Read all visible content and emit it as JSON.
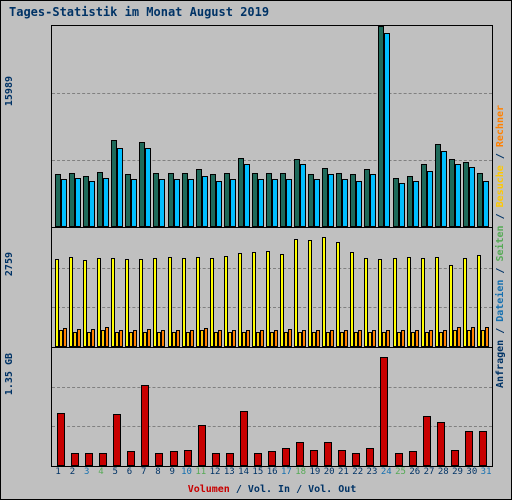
{
  "title": "Tages-Statistik im Monat August 2019",
  "background_color": "#c0c0c0",
  "title_color": "#003366",
  "days": 31,
  "panels": {
    "top": {
      "max": 15989,
      "ylabel_tick": "15989",
      "grid_lines": [
        33,
        66
      ],
      "series": [
        {
          "name": "Anfragen",
          "color": "#1e6a5a",
          "values": [
            4200,
            4300,
            4100,
            4400,
            6900,
            4200,
            6800,
            4300,
            4300,
            4300,
            4600,
            4200,
            4300,
            5500,
            4300,
            4300,
            4300,
            5400,
            4200,
            4700,
            4300,
            4200,
            4600,
            16000,
            3900,
            4100,
            5000,
            6600,
            5400,
            5200,
            4300
          ]
        },
        {
          "name": "Dateien",
          "color": "#00bfff",
          "values": [
            3800,
            3900,
            3700,
            3900,
            6300,
            3800,
            6300,
            3800,
            3800,
            3800,
            4100,
            3700,
            3800,
            5000,
            3800,
            3800,
            3800,
            5000,
            3800,
            4250,
            3800,
            3700,
            4200,
            15400,
            3500,
            3700,
            4500,
            6100,
            5000,
            4800,
            3700
          ]
        }
      ]
    },
    "mid": {
      "max": 2759,
      "ylabel_tick": "2759",
      "grid_lines": [
        33,
        66
      ],
      "series": [
        {
          "name": "Seiten",
          "color": "#ffff00",
          "yellow_border": "#a0a000",
          "values": [
            2050,
            2080,
            2030,
            2060,
            2070,
            2050,
            2040,
            2060,
            2080,
            2060,
            2090,
            2070,
            2110,
            2180,
            2200,
            2230,
            2150,
            2500,
            2490,
            2550,
            2450,
            2200,
            2060,
            2050,
            2070,
            2090,
            2060,
            2100,
            1900,
            2060,
            2130
          ]
        },
        {
          "name": "Besuche",
          "color": "#ffc800",
          "values": [
            380,
            350,
            350,
            400,
            350,
            350,
            350,
            350,
            350,
            350,
            400,
            350,
            350,
            350,
            350,
            350,
            350,
            350,
            350,
            350,
            350,
            350,
            350,
            350,
            350,
            350,
            350,
            350,
            400,
            400,
            400
          ]
        },
        {
          "name": "Rechner",
          "color": "#ff8000",
          "values": [
            430,
            420,
            410,
            450,
            400,
            400,
            410,
            400,
            400,
            400,
            440,
            400,
            400,
            400,
            400,
            400,
            420,
            400,
            400,
            400,
            400,
            400,
            400,
            400,
            400,
            400,
            400,
            400,
            450,
            450,
            450
          ]
        }
      ]
    },
    "bot": {
      "max": 1.6,
      "ylabel_tick": "1.35 GB",
      "grid_lines": [
        33,
        66
      ],
      "series": [
        {
          "name": "Volumen",
          "color": "#c80000",
          "values": [
            0.72,
            0.18,
            0.17,
            0.18,
            0.7,
            0.2,
            1.1,
            0.18,
            0.2,
            0.22,
            0.55,
            0.17,
            0.18,
            0.75,
            0.18,
            0.2,
            0.24,
            0.32,
            0.22,
            0.32,
            0.21,
            0.18,
            0.24,
            1.48,
            0.18,
            0.2,
            0.68,
            0.6,
            0.22,
            0.47,
            0.47
          ]
        }
      ]
    }
  },
  "legend": {
    "right": [
      {
        "text": "Anfragen",
        "color": "#003366"
      },
      {
        "text": "Dateien",
        "color": "#1570b0"
      },
      {
        "text": "Seiten",
        "color": "#55aa55"
      },
      {
        "text": "Besuche",
        "color": "#ffc800"
      },
      {
        "text": "Rechner",
        "color": "#ff8000"
      }
    ],
    "bottom": [
      {
        "text": "Volumen",
        "color": "#c80000"
      },
      {
        "text": "Vol. In",
        "color": "#003366"
      },
      {
        "text": "Vol. Out",
        "color": "#003366"
      }
    ]
  },
  "xaxis_highlight": {
    "color_sat": "#1570b0",
    "color_sun": "#55aa55",
    "sundays": [
      4,
      11,
      18,
      25
    ],
    "saturdays": [
      3,
      10,
      17,
      24,
      31
    ]
  }
}
